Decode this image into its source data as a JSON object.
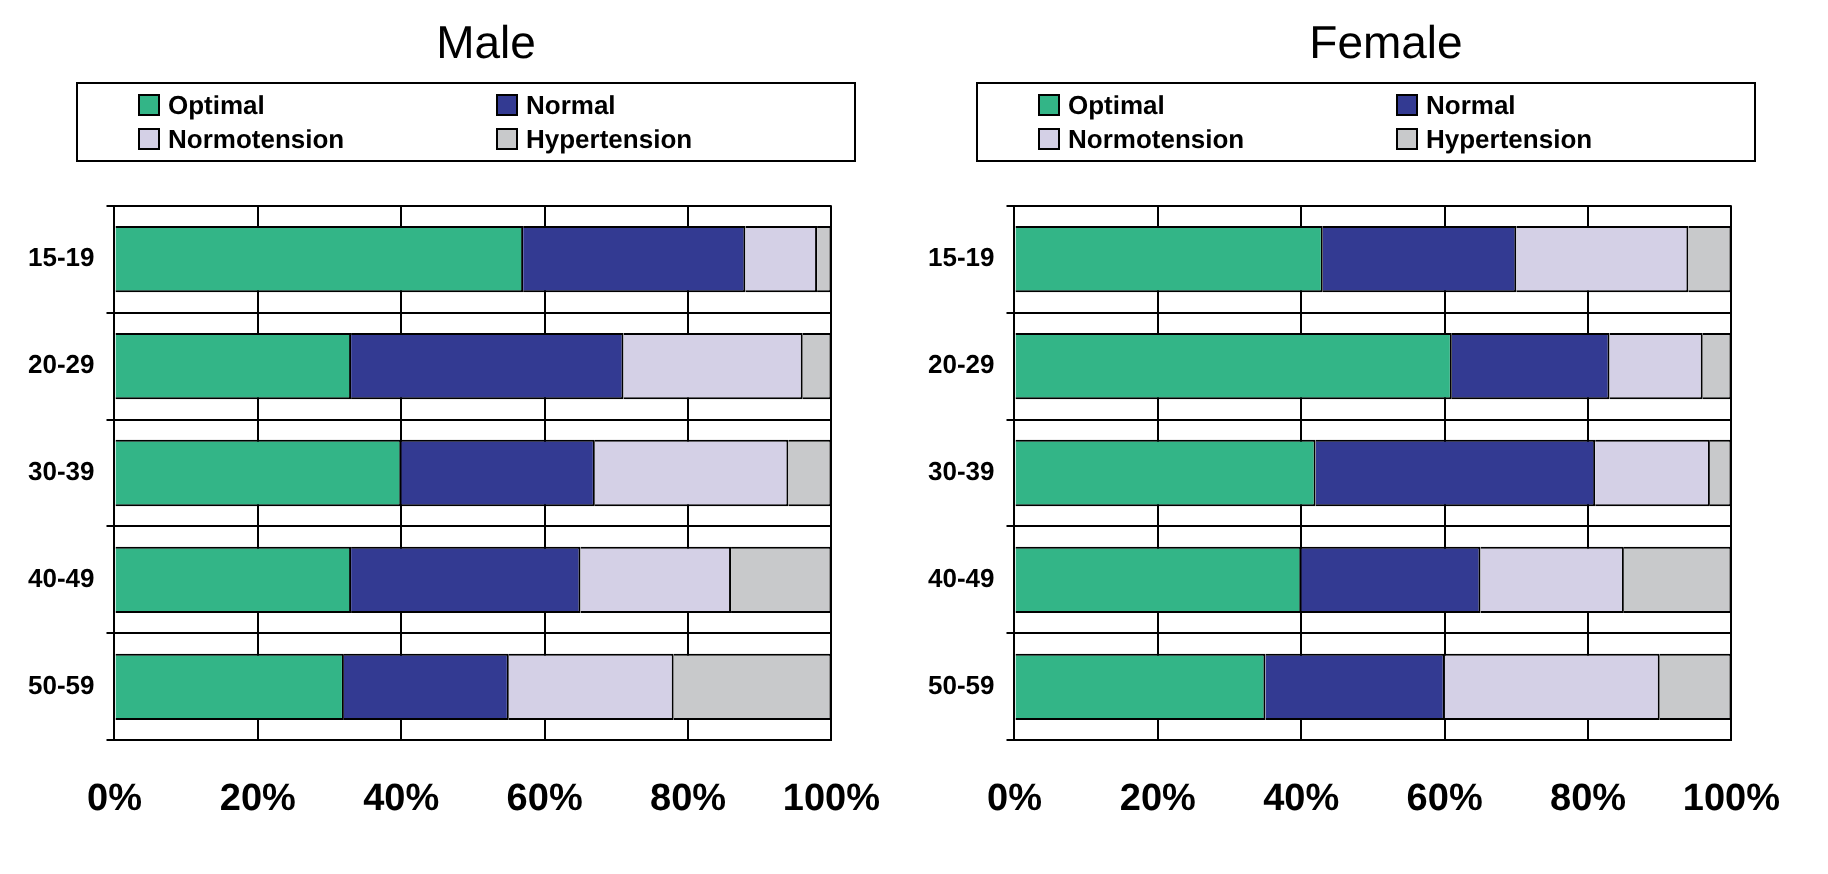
{
  "chart_data": [
    {
      "type": "bar",
      "orientation": "horizontal",
      "stacked": true,
      "title": "Male",
      "categories": [
        "15-19",
        "20-29",
        "30-39",
        "40-49",
        "50-59"
      ],
      "series": [
        {
          "name": "Optimal",
          "color": "#33b587",
          "values": [
            57,
            33,
            40,
            33,
            32
          ]
        },
        {
          "name": "Normal",
          "color": "#333a92",
          "values": [
            31,
            38,
            27,
            32,
            23
          ]
        },
        {
          "name": "Normotension",
          "color": "#d4d0e6",
          "values": [
            10,
            25,
            27,
            21,
            23
          ]
        },
        {
          "name": "Hypertension",
          "color": "#c8c9cb",
          "values": [
            2,
            4,
            6,
            14,
            22
          ]
        }
      ],
      "xlim": [
        0,
        100
      ],
      "xticks": [
        {
          "value": 0,
          "label": "0%"
        },
        {
          "value": 20,
          "label": "20%"
        },
        {
          "value": 40,
          "label": "40%"
        },
        {
          "value": 60,
          "label": "60%"
        },
        {
          "value": 80,
          "label": "80%"
        },
        {
          "value": 100,
          "label": "100%"
        }
      ],
      "grid": true,
      "legend": "top"
    },
    {
      "type": "bar",
      "orientation": "horizontal",
      "stacked": true,
      "title": "Female",
      "categories": [
        "15-19",
        "20-29",
        "30-39",
        "40-49",
        "50-59"
      ],
      "series": [
        {
          "name": "Optimal",
          "color": "#33b587",
          "values": [
            43,
            61,
            42,
            40,
            35
          ]
        },
        {
          "name": "Normal",
          "color": "#333a92",
          "values": [
            27,
            22,
            39,
            25,
            25
          ]
        },
        {
          "name": "Normotension",
          "color": "#d4d0e6",
          "values": [
            24,
            13,
            16,
            20,
            30
          ]
        },
        {
          "name": "Hypertension",
          "color": "#c8c9cb",
          "values": [
            6,
            4,
            3,
            15,
            10
          ]
        }
      ],
      "xlim": [
        0,
        100
      ],
      "xticks": [
        {
          "value": 0,
          "label": "0%"
        },
        {
          "value": 20,
          "label": "20%"
        },
        {
          "value": 40,
          "label": "40%"
        },
        {
          "value": 60,
          "label": "60%"
        },
        {
          "value": 80,
          "label": "80%"
        },
        {
          "value": 100,
          "label": "100%"
        }
      ],
      "grid": true,
      "legend": "top"
    }
  ]
}
